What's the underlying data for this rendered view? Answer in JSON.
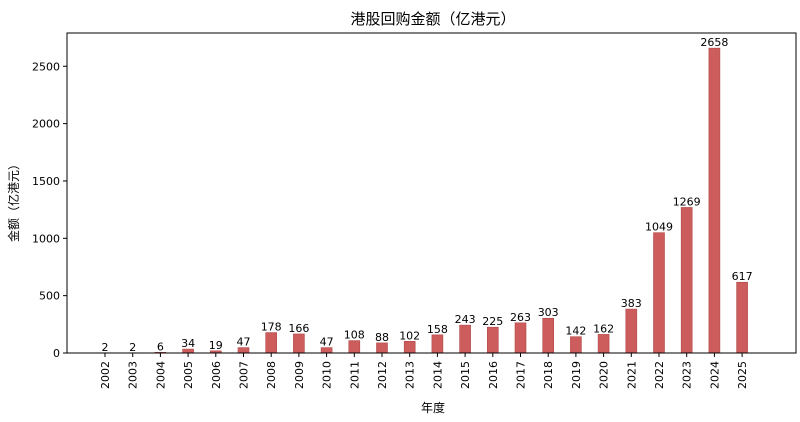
{
  "chart_data": {
    "type": "bar",
    "title": "港股回购金额（亿港元）",
    "xlabel": "年度",
    "ylabel": "金额（亿港元）",
    "categories": [
      "2002",
      "2003",
      "2004",
      "2005",
      "2006",
      "2007",
      "2008",
      "2009",
      "2010",
      "2011",
      "2012",
      "2013",
      "2014",
      "2015",
      "2016",
      "2017",
      "2018",
      "2019",
      "2020",
      "2021",
      "2022",
      "2023",
      "2024",
      "2025"
    ],
    "values": [
      2,
      2,
      6,
      34,
      19,
      47,
      178,
      166,
      47,
      108,
      88,
      102,
      158,
      243,
      225,
      263,
      303,
      142,
      162,
      383,
      1049,
      1269,
      2658,
      617
    ],
    "ylim": [
      0,
      2790
    ],
    "yticks": [
      0,
      500,
      1000,
      1500,
      2000,
      2500
    ],
    "grid": false,
    "legend": "none",
    "bar_color": "#cd5c5c"
  }
}
